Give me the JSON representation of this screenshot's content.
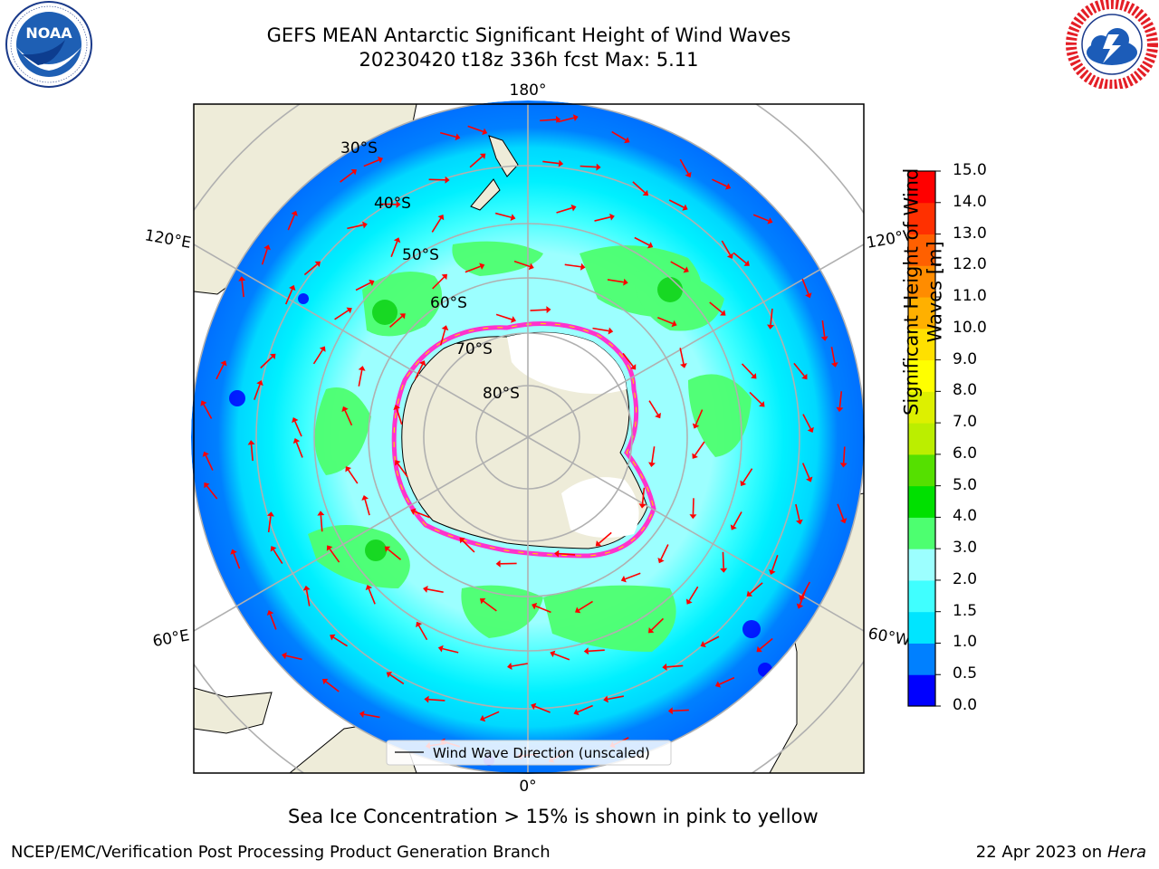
{
  "header": {
    "title_line1": "GEFS MEAN Antarctic Significant Height of Wind Waves",
    "title_line2": "20230420 t18z 336h fcst   Max: 5.11"
  },
  "logos": {
    "left": {
      "name": "noaa-logo",
      "text": "NOAA",
      "ring_text": "NATIONAL OCEANIC AND ATMOSPHERIC ADMINISTRATION · U.S. DEPARTMENT OF COMMERCE"
    },
    "right": {
      "name": "nws-logo",
      "ring_text": "NATIONAL WEATHER SERVICE"
    }
  },
  "map": {
    "projection": "south-polar-stereographic",
    "lon_labels": {
      "top": "180°",
      "bottom": "0°",
      "left_upper": "120°E",
      "left_lower": "60°E",
      "right_upper": "120°W",
      "right_lower": "60°W"
    },
    "lat_labels": [
      "30°S",
      "40°S",
      "50°S",
      "60°S",
      "70°S",
      "80°S"
    ],
    "legend_label": "Wind Wave Direction (unscaled)",
    "colors": {
      "land": "#eeecd9",
      "ocean_deep_low": "#0000ff",
      "ocean_low": "#0080ff",
      "ocean_mid": "#00ffff",
      "ocean_mid2": "#7fffff",
      "ocean_high": "#4cff66",
      "ice_edge": "#ff33cc",
      "arrow": "#ff0000"
    }
  },
  "colorbar": {
    "label": "Significant Height of Wind Waves [m]",
    "label_line1": "Significant Height of Wind",
    "label_line2": "Waves [m]",
    "ticks": [
      "0.0",
      "0.5",
      "1.0",
      "1.5",
      "2.0",
      "3.0",
      "4.0",
      "5.0",
      "6.0",
      "7.0",
      "8.0",
      "9.0",
      "10.0",
      "11.0",
      "12.0",
      "13.0",
      "14.0",
      "15.0"
    ],
    "colors": [
      "#0000ff",
      "#0080ff",
      "#00e5ff",
      "#40ffff",
      "#9cffff",
      "#4dff70",
      "#00e000",
      "#55e000",
      "#bbee00",
      "#ddf000",
      "#ffff00",
      "#ffe000",
      "#ffb000",
      "#ff8c00",
      "#ff6000",
      "#ff3000",
      "#ff0000"
    ]
  },
  "notes": {
    "sea_ice": "Sea Ice Concentration > 15% is shown in pink to yellow"
  },
  "footer": {
    "left": "NCEP/EMC/Verification Post Processing Product Generation Branch",
    "right_prefix": "22 Apr 2023 on ",
    "right_host": "Hera"
  }
}
